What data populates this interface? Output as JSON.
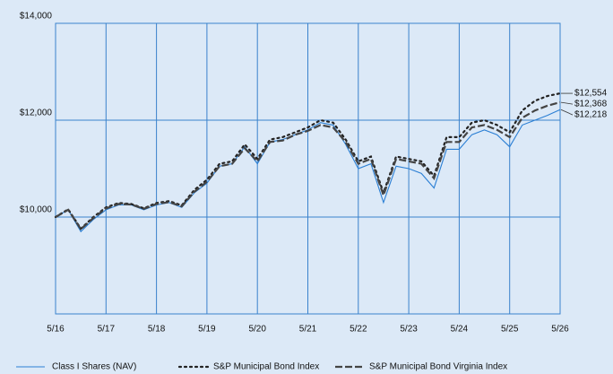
{
  "chart_data": {
    "type": "line",
    "categories": [
      "5/16",
      null,
      null,
      null,
      "5/17",
      null,
      null,
      null,
      "5/18",
      null,
      null,
      null,
      "5/19",
      null,
      null,
      null,
      "5/20",
      null,
      null,
      null,
      "5/21",
      null,
      null,
      null,
      "5/22",
      null,
      null,
      null,
      "5/23",
      null,
      null,
      null,
      "5/24",
      null,
      null,
      null,
      "5/25",
      null,
      null,
      null,
      "5/26"
    ],
    "series": [
      {
        "name": "Class I Shares (NAV)",
        "color": "#2b7fd4",
        "style": "solid",
        "values": [
          10000,
          10150,
          9700,
          9950,
          10150,
          10250,
          10250,
          10150,
          10250,
          10300,
          10200,
          10500,
          10700,
          11050,
          11100,
          11450,
          11100,
          11550,
          11600,
          11700,
          11800,
          11950,
          11900,
          11500,
          11000,
          11100,
          10300,
          11050,
          11000,
          10900,
          10600,
          11400,
          11400,
          11700,
          11800,
          11700,
          11450,
          11900,
          12000,
          12100,
          12218
        ],
        "value_labels": [
          null,
          null,
          null,
          null,
          null,
          null,
          null,
          null,
          null,
          null,
          null,
          null,
          null,
          null,
          null,
          null,
          null,
          null,
          null,
          null,
          null,
          null,
          null,
          null,
          null,
          null,
          null,
          null,
          null,
          null,
          null,
          null,
          null,
          null,
          null,
          null,
          null,
          null,
          null,
          null,
          "$12,218"
        ]
      },
      {
        "name": "S&P Municipal Bond Index",
        "color": "#222222",
        "style": "dotted",
        "values": [
          10000,
          10160,
          9760,
          10000,
          10200,
          10290,
          10270,
          10180,
          10290,
          10330,
          10240,
          10560,
          10770,
          11100,
          11150,
          11500,
          11200,
          11600,
          11650,
          11750,
          11850,
          12000,
          11950,
          11600,
          11150,
          11250,
          10500,
          11250,
          11200,
          11150,
          10850,
          11650,
          11650,
          11950,
          12000,
          11900,
          11750,
          12200,
          12400,
          12500,
          12554
        ],
        "value_labels": [
          null,
          null,
          null,
          null,
          null,
          null,
          null,
          null,
          null,
          null,
          null,
          null,
          null,
          null,
          null,
          null,
          null,
          null,
          null,
          null,
          null,
          null,
          null,
          null,
          null,
          null,
          null,
          null,
          null,
          null,
          null,
          null,
          null,
          null,
          null,
          null,
          null,
          null,
          null,
          null,
          "$12,554"
        ]
      },
      {
        "name": "S&P Municipal Bond Virginia Index",
        "color": "#444444",
        "style": "dashed",
        "values": [
          10000,
          10150,
          9750,
          9980,
          10180,
          10270,
          10260,
          10170,
          10270,
          10310,
          10220,
          10520,
          10730,
          11050,
          11100,
          11420,
          11150,
          11550,
          11580,
          11700,
          11780,
          11900,
          11850,
          11550,
          11100,
          11200,
          10450,
          11200,
          11150,
          11100,
          10800,
          11550,
          11550,
          11850,
          11900,
          11800,
          11650,
          12050,
          12200,
          12300,
          12368
        ],
        "value_labels": [
          null,
          null,
          null,
          null,
          null,
          null,
          null,
          null,
          null,
          null,
          null,
          null,
          null,
          null,
          null,
          null,
          null,
          null,
          null,
          null,
          null,
          null,
          null,
          null,
          null,
          null,
          null,
          null,
          null,
          null,
          null,
          null,
          null,
          null,
          null,
          null,
          null,
          null,
          null,
          null,
          "$12,368"
        ]
      }
    ],
    "ylim": [
      8000,
      14000
    ],
    "yticks": [
      {
        "value": 10000,
        "label": "$10,000"
      },
      {
        "value": 12000,
        "label": "$12,000"
      },
      {
        "value": 14000,
        "label": "$14,000"
      }
    ],
    "grid": true
  }
}
